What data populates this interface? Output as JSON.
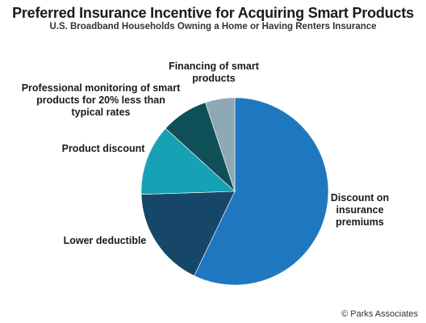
{
  "title": "Preferred Insurance Incentive for Acquiring Smart Products",
  "subtitle": "U.S. Broadband Households Owning a Home or Having Renters Insurance",
  "credit": "© Parks Associates",
  "chart_data": {
    "type": "pie",
    "title": "Preferred Insurance Incentive for Acquiring Smart Products",
    "subtitle": "U.S. Broadband Households Owning a Home or Having Renters Insurance",
    "slices": [
      {
        "label": "Discount on insurance premiums",
        "value": 56,
        "color": "#1f78bf"
      },
      {
        "label": "Lower deductible",
        "value": 17,
        "color": "#164769"
      },
      {
        "label": "Product discount",
        "value": 12,
        "color": "#17a1b4"
      },
      {
        "label": "Professional monitoring of smart products for 20% less than typical rates",
        "value": 8,
        "color": "#0f4f58"
      },
      {
        "label": "Financing of smart products",
        "value": 5,
        "color": "#8ea8b5"
      }
    ],
    "start": "12 o'clock",
    "direction": "clockwise",
    "legend": "none (slice labels)"
  }
}
